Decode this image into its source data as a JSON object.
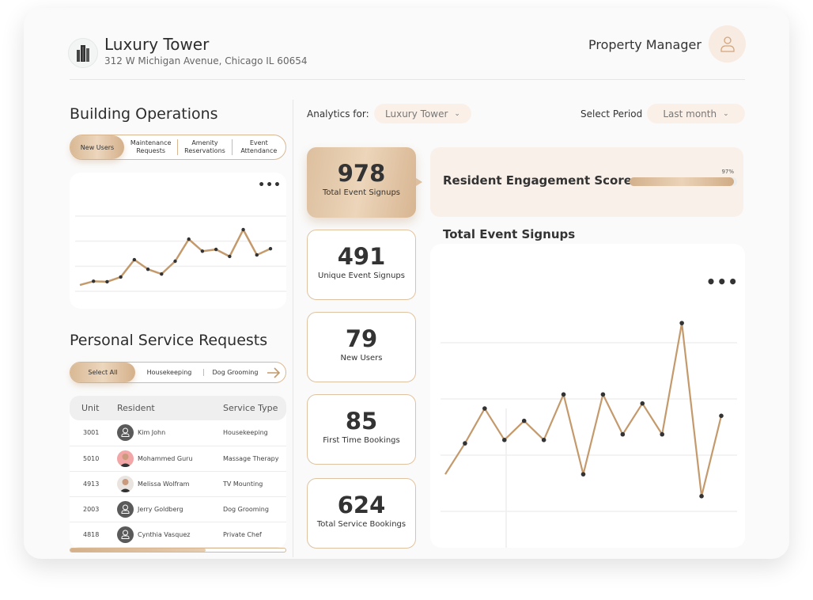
{
  "header": {
    "title": "Luxury Tower",
    "address": "312 W Michigan Avenue, Chicago IL 60654",
    "role": "Property Manager",
    "logo_icon": "building-icon",
    "avatar_icon": "user-icon"
  },
  "building_ops": {
    "title": "Building Operations",
    "tabs": [
      "New Users",
      "Maintenance Requests",
      "Amenity Reservations",
      "Event Attendance"
    ],
    "active_tab": "New Users",
    "chart_data": {
      "type": "line",
      "values": [
        2.5,
        4,
        3.8,
        5.7,
        12.6,
        8.8,
        6.9,
        12,
        20.8,
        16,
        16.7,
        13.9,
        24.6,
        14.5,
        17
      ],
      "ylim": [
        0,
        30
      ],
      "grid": true,
      "color": "#c49a6c"
    }
  },
  "service_requests": {
    "title": "Personal Service Requests",
    "filters": [
      "Select All",
      "Housekeeping",
      "Dog Grooming"
    ],
    "active_filter": "Select All",
    "next_icon": "arrow-right-icon",
    "columns": [
      "Unit",
      "Resident",
      "Service Type"
    ],
    "rows": [
      {
        "unit": "3001",
        "resident": "Kim John",
        "service": "Housekeeping",
        "avatar": "placeholder"
      },
      {
        "unit": "5010",
        "resident": "Mohammed Guru",
        "service": "Massage Therapy",
        "avatar": "photo"
      },
      {
        "unit": "4913",
        "resident": "Melissa Wolfram",
        "service": "TV Mounting",
        "avatar": "photo"
      },
      {
        "unit": "2003",
        "resident": "Jerry Goldberg",
        "service": "Dog Grooming",
        "avatar": "placeholder"
      },
      {
        "unit": "4818",
        "resident": "Cynthia Vasquez",
        "service": "Private Chef",
        "avatar": "placeholder"
      }
    ],
    "scroll_progress": 0.63
  },
  "filters": {
    "analytics_label": "Analytics for:",
    "analytics_value": "Luxury Tower",
    "period_label": "Select Period",
    "period_value": "Last month"
  },
  "stats": [
    {
      "value": "978",
      "label": "Total Event Signups"
    },
    {
      "value": "491",
      "label": "Unique Event Signups"
    },
    {
      "value": "79",
      "label": "New Users"
    },
    {
      "value": "85",
      "label": "First Time Bookings"
    },
    {
      "value": "624",
      "label": "Total Service Bookings"
    }
  ],
  "engagement": {
    "label": "Resident Engagement Score",
    "percent_text": "97%",
    "percent": 97
  },
  "signups": {
    "title": "Total Event Signups",
    "chart_data": {
      "type": "line",
      "values": [
        6.6,
        12.1,
        18.3,
        12.7,
        16.1,
        12.7,
        20.8,
        6.6,
        20.8,
        13.7,
        19.2,
        13.7,
        33.5,
        2.7,
        17
      ],
      "ylim": [
        0,
        40
      ],
      "grid": true,
      "color": "#c49a6c"
    }
  },
  "colors": {
    "accent": "#c49a6c",
    "accent_light": "#faf0e8"
  }
}
